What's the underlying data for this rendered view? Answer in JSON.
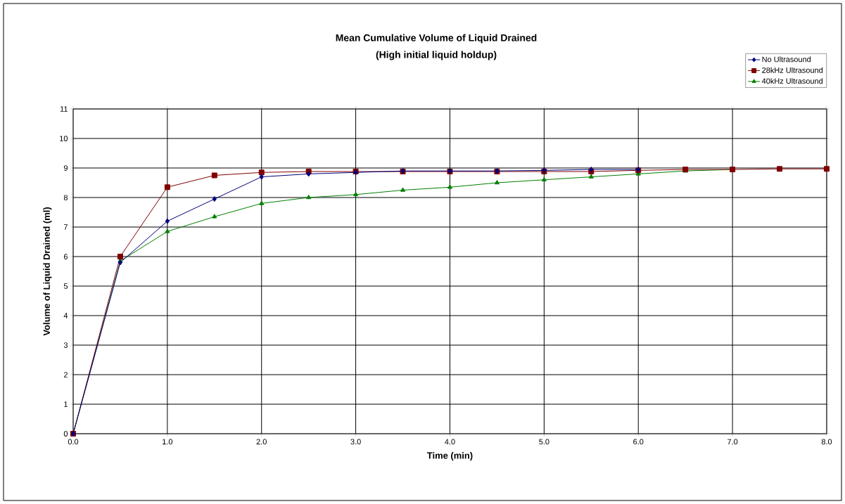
{
  "chart_data": {
    "type": "line",
    "title": "Mean Cumulative Volume of Liquid Drained",
    "subtitle": "(High initial liquid holdup)",
    "xlabel": "Time (min)",
    "ylabel": "Volume of Liquid Drained (ml)",
    "xlim": [
      0,
      8
    ],
    "ylim": [
      0,
      11
    ],
    "xticks": [
      {
        "value": 0,
        "label": "0.0"
      },
      {
        "value": 1,
        "label": "1.0"
      },
      {
        "value": 2,
        "label": "2.0"
      },
      {
        "value": 3,
        "label": "3.0"
      },
      {
        "value": 4,
        "label": "4.0"
      },
      {
        "value": 5,
        "label": "5.0"
      },
      {
        "value": 6,
        "label": "6.0"
      },
      {
        "value": 7,
        "label": "7.0"
      },
      {
        "value": 8,
        "label": "8.0"
      }
    ],
    "yticks": [
      0,
      1,
      2,
      3,
      4,
      5,
      6,
      7,
      8,
      9,
      10,
      11
    ],
    "grid": true,
    "legend": "top right",
    "series": [
      {
        "name": "No Ultrasound",
        "color": "#000080",
        "marker": "diamond",
        "x": [
          0,
          0.5,
          1,
          1.5,
          2,
          2.5,
          3,
          3.5,
          4,
          4.5,
          5,
          5.5,
          6
        ],
        "values": [
          0,
          5.8,
          7.2,
          7.95,
          8.7,
          8.8,
          8.85,
          8.9,
          8.9,
          8.9,
          8.92,
          8.95,
          8.95
        ]
      },
      {
        "name": "28kHz Ultrasound",
        "color": "#800000",
        "marker": "square",
        "x": [
          0,
          0.5,
          1,
          1.5,
          2,
          2.5,
          3,
          3.5,
          4,
          4.5,
          5,
          5.5,
          6,
          6.5,
          7,
          7.5,
          8
        ],
        "values": [
          0,
          6.0,
          8.35,
          8.75,
          8.85,
          8.88,
          8.88,
          8.88,
          8.88,
          8.88,
          8.88,
          8.88,
          8.92,
          8.95,
          8.95,
          8.97,
          8.97
        ]
      },
      {
        "name": "40kHz Ultrasound",
        "color": "#008000",
        "marker": "triangle",
        "x": [
          0,
          0.5,
          1,
          1.5,
          2,
          2.5,
          3,
          3.5,
          4,
          4.5,
          5,
          5.5,
          6,
          6.5,
          7
        ],
        "values": [
          0,
          5.85,
          6.85,
          7.35,
          7.8,
          8.0,
          8.1,
          8.25,
          8.35,
          8.5,
          8.6,
          8.7,
          8.8,
          8.9,
          8.95
        ]
      }
    ]
  }
}
